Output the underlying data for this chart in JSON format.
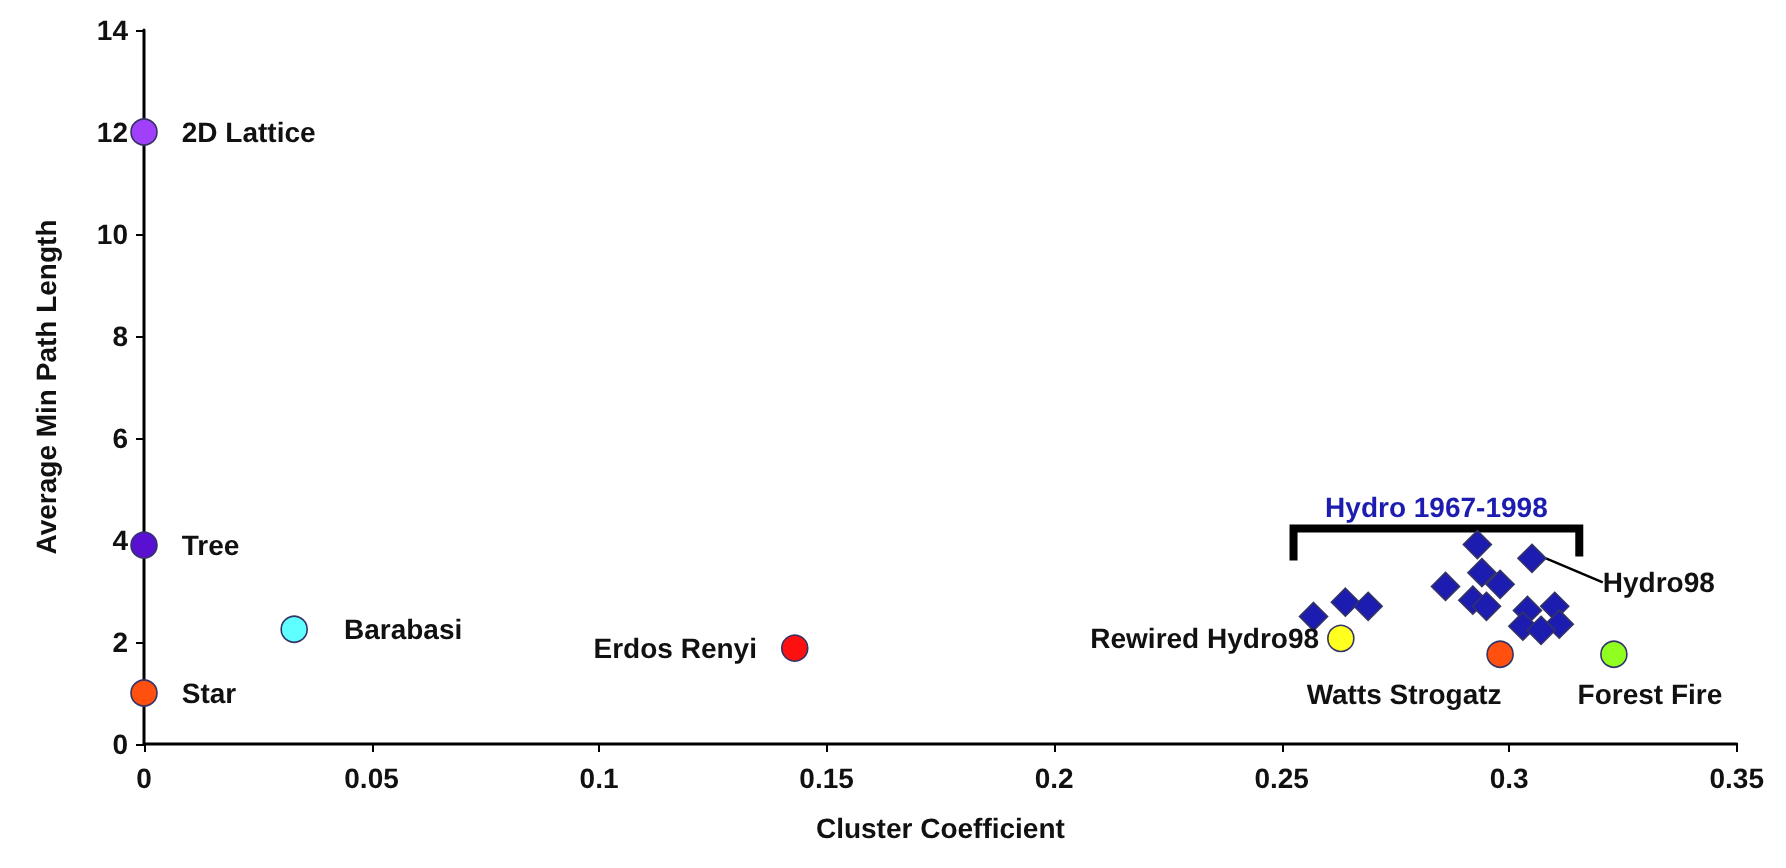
{
  "chart_data": {
    "type": "scatter",
    "xlabel": "Cluster Coefficient",
    "ylabel": "Average Min Path Length",
    "xlim": [
      0,
      0.35
    ],
    "xticks": [
      0,
      0.05,
      0.1,
      0.15,
      0.2,
      0.25,
      0.3,
      0.35
    ],
    "ylim": [
      0,
      14
    ],
    "yticks": [
      0,
      2,
      4,
      6,
      8,
      10,
      12,
      14
    ],
    "grid": false,
    "legend": false,
    "marker": "circle",
    "series": [
      {
        "name": "2D Lattice",
        "color": "#a040f8",
        "x": [
          0
        ],
        "values": [
          12
        ]
      },
      {
        "name": "Tree",
        "color": "#5a10d0",
        "x": [
          0
        ],
        "values": [
          3.9
        ]
      },
      {
        "name": "Star",
        "color": "#ff5010",
        "x": [
          0
        ],
        "values": [
          1
        ]
      },
      {
        "name": "Barabasi",
        "color": "#60ffff",
        "x": [
          0.033
        ],
        "values": [
          2.25
        ]
      },
      {
        "name": "Erdos Renyi",
        "color": "#ff1010",
        "x": [
          0.143
        ],
        "values": [
          1.88
        ]
      },
      {
        "name": "Rewired Hydro98",
        "color": "#ffff20",
        "x": [
          0.263
        ],
        "values": [
          2.07
        ]
      },
      {
        "name": "Watts Strogatz",
        "color": "#ff5010",
        "x": [
          0.298
        ],
        "values": [
          1.76
        ]
      },
      {
        "name": "Forest Fire",
        "color": "#90ff20",
        "x": [
          0.323
        ],
        "values": [
          1.76
        ]
      },
      {
        "name": "Hydro98",
        "color": "#1c1cb0",
        "marker": "diamond",
        "x": [
          0.305
        ],
        "values": [
          3.64
        ]
      },
      {
        "name": "Hydro 1967-1998",
        "color": "#1c1cb0",
        "marker": "diamond",
        "x": [
          0.293,
          0.257,
          0.264,
          0.269,
          0.286,
          0.294,
          0.292,
          0.295,
          0.304,
          0.31,
          0.303,
          0.311,
          0.307,
          0.298
        ],
        "values": [
          3.91,
          2.5,
          2.78,
          2.7,
          3.09,
          3.36,
          2.82,
          2.7,
          2.62,
          2.7,
          2.31,
          2.35,
          2.23,
          3.13
        ]
      }
    ]
  }
}
